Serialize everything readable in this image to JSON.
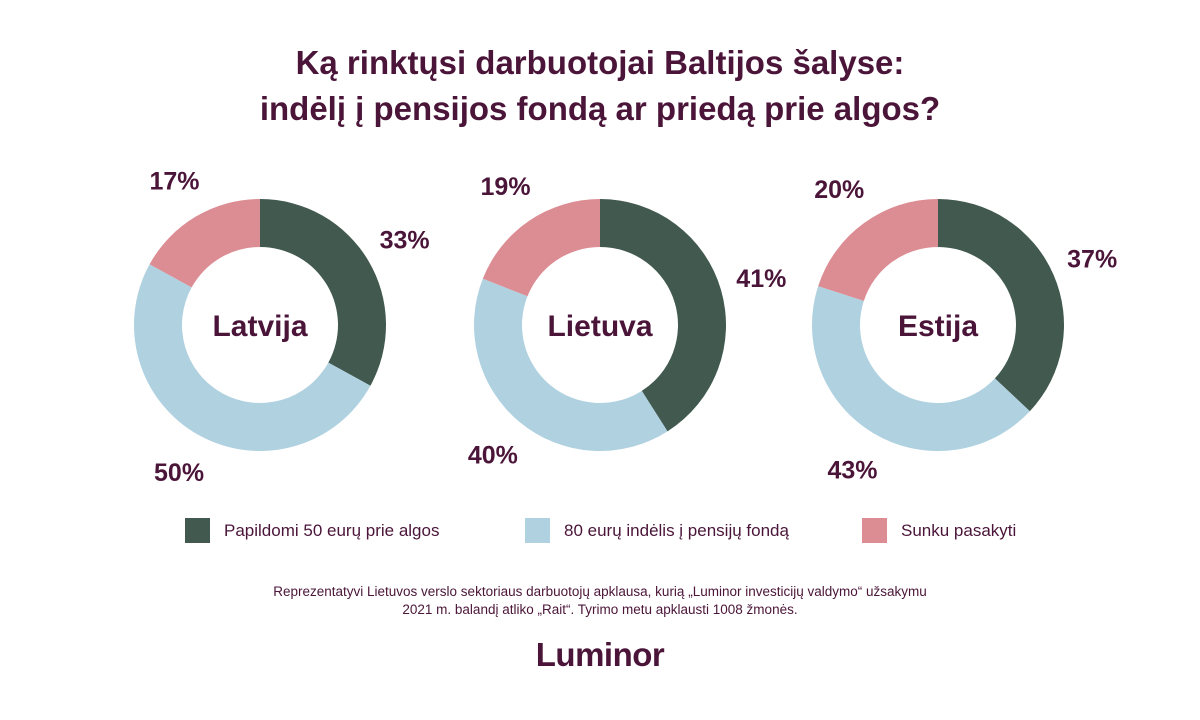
{
  "title": {
    "line1": "Ką rinktųsi darbuotojai Baltijos šalyse:",
    "line2": "indėlį į pensijos fondą ar priedą prie algos?"
  },
  "colors": {
    "text": "#4a1538",
    "green": "#41594f",
    "blue": "#afd1e0",
    "pink": "#dc8c93"
  },
  "chart_data": [
    {
      "type": "pie",
      "variant": "donut",
      "center_label": "Latvija",
      "categories": [
        "Papildomi 50 eurų prie algos",
        "80 eurų indėlis į pensijų fondą",
        "Sunku pasakyti"
      ],
      "values": [
        33,
        50,
        17
      ],
      "value_labels": [
        "33%",
        "50%",
        "17%"
      ]
    },
    {
      "type": "pie",
      "variant": "donut",
      "center_label": "Lietuva",
      "categories": [
        "Papildomi 50 eurų prie algos",
        "80 eurų indėlis į pensijų fondą",
        "Sunku pasakyti"
      ],
      "values": [
        41,
        40,
        19
      ],
      "value_labels": [
        "41%",
        "40%",
        "19%"
      ]
    },
    {
      "type": "pie",
      "variant": "donut",
      "center_label": "Estija",
      "categories": [
        "Papildomi 50 eurų prie algos",
        "80 eurų indėlis į pensijų fondą",
        "Sunku pasakyti"
      ],
      "values": [
        37,
        43,
        20
      ],
      "value_labels": [
        "37%",
        "43%",
        "20%"
      ]
    }
  ],
  "legend": [
    {
      "label": "Papildomi 50 eurų prie algos",
      "color": "#41594f"
    },
    {
      "label": "80 eurų indėlis į pensijų fondą",
      "color": "#afd1e0"
    },
    {
      "label": "Sunku pasakyti",
      "color": "#dc8c93"
    }
  ],
  "footnote": {
    "line1": "Reprezentatyvi Lietuvos verslo sektoriaus darbuotojų apklausa, kurią „Luminor investicijų valdymo“ užsakymu",
    "line2": "2021 m. balandį atliko „Rait“. Tyrimo metu apklausti 1008 žmonės."
  },
  "logo": "Luminor"
}
